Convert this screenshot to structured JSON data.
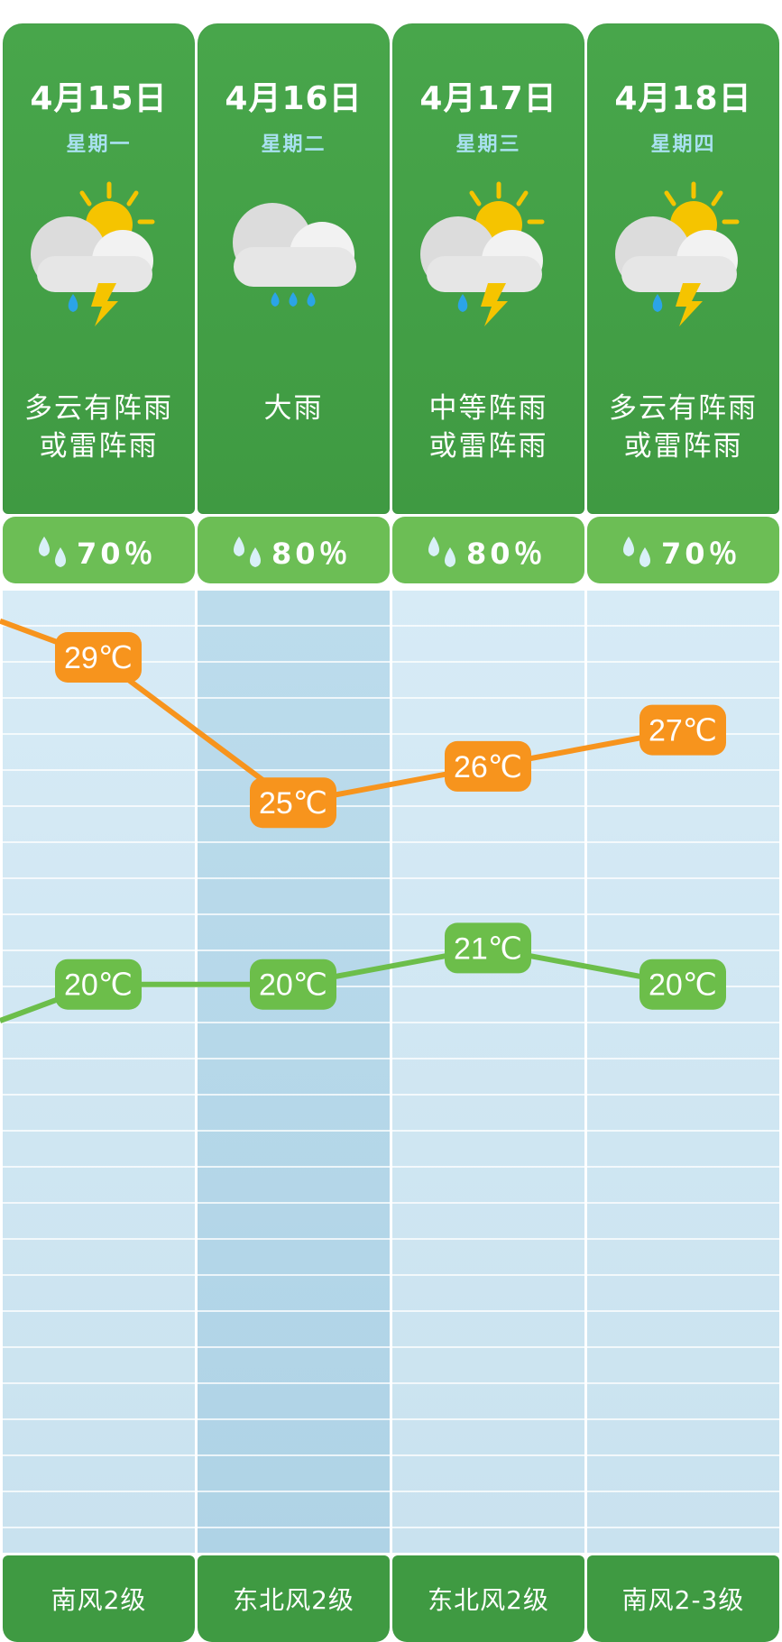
{
  "days": [
    {
      "date": "4月15日",
      "weekday": "星期一",
      "icon": "cloud-rain-thunder-sun-icon",
      "desc_line1": "多云有阵雨",
      "desc_line2": "或雷阵雨",
      "rain": "70％",
      "high": "29℃",
      "low": "20℃",
      "wind": "南风2级"
    },
    {
      "date": "4月16日",
      "weekday": "星期二",
      "icon": "cloud-heavy-rain-icon",
      "desc_line1": "大雨",
      "desc_line2": "",
      "rain": "80％",
      "high": "25℃",
      "low": "20℃",
      "wind": "东北风2级"
    },
    {
      "date": "4月17日",
      "weekday": "星期三",
      "icon": "cloud-rain-thunder-sun-icon",
      "desc_line1": "中等阵雨",
      "desc_line2": "或雷阵雨",
      "rain": "80％",
      "high": "26℃",
      "low": "21℃",
      "wind": "东北风2级"
    },
    {
      "date": "4月18日",
      "weekday": "星期四",
      "icon": "cloud-rain-thunder-sun-icon",
      "desc_line1": "多云有阵雨",
      "desc_line2": "或雷阵雨",
      "rain": "70％",
      "high": "27℃",
      "low": "20℃",
      "wind": "南风2-3级"
    }
  ],
  "colors": {
    "header_green": "#3f9a42",
    "rain_green": "#6cbe55",
    "high_line": "#f7941d",
    "low_line": "#6cbe4a",
    "weekday_text": "#a9e1f0"
  },
  "chart_data": {
    "type": "line",
    "categories": [
      "4月15日",
      "4月16日",
      "4月17日",
      "4月18日"
    ],
    "series": [
      {
        "values": [
          29,
          25,
          26,
          27
        ],
        "unit": "℃"
      },
      {
        "values": [
          20,
          20,
          21,
          20
        ],
        "unit": "℃"
      }
    ],
    "edge_values": {
      "high_left": 30,
      "low_left": 19
    },
    "grid": true,
    "legend": "none"
  }
}
